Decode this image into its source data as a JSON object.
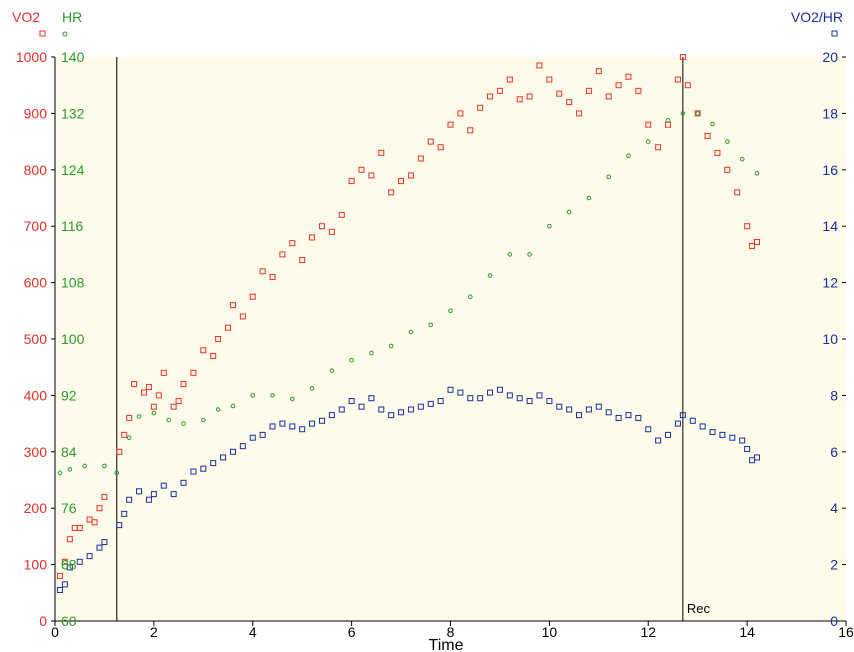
{
  "chart_data": {
    "type": "scatter",
    "xlabel": "Time",
    "xlim": [
      0,
      16
    ],
    "xticks": [
      "0",
      "2",
      "4",
      "6",
      "8",
      "10",
      "12",
      "14",
      "16"
    ],
    "axes": {
      "vo2": {
        "label": "VO2",
        "color": "#e8312a",
        "ylim": [
          0,
          1000
        ],
        "ticks": [
          "0",
          "100",
          "200",
          "300",
          "400",
          "500",
          "600",
          "700",
          "800",
          "900",
          "1000"
        ]
      },
      "hr": {
        "label": "HR",
        "color": "#2e9a2e",
        "ylim": [
          60,
          140
        ],
        "ticks": [
          "60",
          "68",
          "76",
          "84",
          "92",
          "100",
          "108",
          "116",
          "124",
          "132",
          "140"
        ]
      },
      "vo2hr": {
        "label": "VO2/HR",
        "color": "#1a2f9c",
        "ylim": [
          0,
          20
        ],
        "ticks": [
          "0",
          "2",
          "4",
          "6",
          "8",
          "10",
          "12",
          "14",
          "16",
          "18",
          "20"
        ]
      }
    },
    "markers": [
      {
        "x": 1.25,
        "label": ""
      },
      {
        "x": 12.7,
        "label": "Rec"
      }
    ],
    "grid": false,
    "series": [
      {
        "name": "VO2",
        "axis": "vo2",
        "marker": "square",
        "color": "#e8312a",
        "points": [
          [
            0.1,
            80
          ],
          [
            0.2,
            105
          ],
          [
            0.3,
            145
          ],
          [
            0.4,
            165
          ],
          [
            0.5,
            165
          ],
          [
            0.7,
            180
          ],
          [
            0.8,
            175
          ],
          [
            0.9,
            200
          ],
          [
            1.0,
            220
          ],
          [
            1.3,
            300
          ],
          [
            1.4,
            330
          ],
          [
            1.5,
            360
          ],
          [
            1.6,
            420
          ],
          [
            1.8,
            405
          ],
          [
            1.9,
            415
          ],
          [
            2.0,
            380
          ],
          [
            2.1,
            400
          ],
          [
            2.2,
            440
          ],
          [
            2.4,
            380
          ],
          [
            2.5,
            390
          ],
          [
            2.6,
            420
          ],
          [
            2.8,
            440
          ],
          [
            3.0,
            480
          ],
          [
            3.2,
            470
          ],
          [
            3.3,
            500
          ],
          [
            3.5,
            520
          ],
          [
            3.6,
            560
          ],
          [
            3.8,
            540
          ],
          [
            4.0,
            575
          ],
          [
            4.2,
            620
          ],
          [
            4.4,
            610
          ],
          [
            4.6,
            650
          ],
          [
            4.8,
            670
          ],
          [
            5.0,
            640
          ],
          [
            5.2,
            680
          ],
          [
            5.4,
            700
          ],
          [
            5.6,
            690
          ],
          [
            5.8,
            720
          ],
          [
            6.0,
            780
          ],
          [
            6.2,
            800
          ],
          [
            6.4,
            790
          ],
          [
            6.6,
            830
          ],
          [
            6.8,
            760
          ],
          [
            7.0,
            780
          ],
          [
            7.2,
            790
          ],
          [
            7.4,
            820
          ],
          [
            7.6,
            850
          ],
          [
            7.8,
            840
          ],
          [
            8.0,
            880
          ],
          [
            8.2,
            900
          ],
          [
            8.4,
            870
          ],
          [
            8.6,
            910
          ],
          [
            8.8,
            930
          ],
          [
            9.0,
            940
          ],
          [
            9.2,
            960
          ],
          [
            9.4,
            925
          ],
          [
            9.6,
            930
          ],
          [
            9.8,
            985
          ],
          [
            10.0,
            960
          ],
          [
            10.2,
            935
          ],
          [
            10.4,
            920
          ],
          [
            10.6,
            900
          ],
          [
            10.8,
            940
          ],
          [
            11.0,
            975
          ],
          [
            11.2,
            930
          ],
          [
            11.4,
            950
          ],
          [
            11.6,
            965
          ],
          [
            11.8,
            940
          ],
          [
            12.0,
            880
          ],
          [
            12.2,
            840
          ],
          [
            12.4,
            880
          ],
          [
            12.6,
            960
          ],
          [
            12.7,
            1000
          ],
          [
            12.8,
            950
          ],
          [
            13.0,
            900
          ],
          [
            13.2,
            860
          ],
          [
            13.4,
            830
          ],
          [
            13.6,
            800
          ],
          [
            13.8,
            760
          ],
          [
            14.0,
            700
          ],
          [
            14.1,
            665
          ],
          [
            14.2,
            672
          ]
        ]
      },
      {
        "name": "HR",
        "axis": "hr",
        "marker": "circle",
        "color": "#2e9a2e",
        "points": [
          [
            0.1,
            81
          ],
          [
            0.3,
            81.5
          ],
          [
            0.6,
            82
          ],
          [
            1.0,
            82
          ],
          [
            1.25,
            81
          ],
          [
            1.5,
            86
          ],
          [
            1.7,
            89
          ],
          [
            2.0,
            89.5
          ],
          [
            2.3,
            88.5
          ],
          [
            2.6,
            88
          ],
          [
            3.0,
            88.5
          ],
          [
            3.3,
            90
          ],
          [
            3.6,
            90.5
          ],
          [
            4.0,
            92
          ],
          [
            4.4,
            92
          ],
          [
            4.8,
            91.5
          ],
          [
            5.2,
            93
          ],
          [
            5.6,
            95.5
          ],
          [
            6.0,
            97
          ],
          [
            6.4,
            98
          ],
          [
            6.8,
            99
          ],
          [
            7.2,
            101
          ],
          [
            7.6,
            102
          ],
          [
            8.0,
            104
          ],
          [
            8.4,
            106
          ],
          [
            8.8,
            109
          ],
          [
            9.2,
            112
          ],
          [
            9.6,
            112
          ],
          [
            10.0,
            116
          ],
          [
            10.4,
            118
          ],
          [
            10.8,
            120
          ],
          [
            11.2,
            123
          ],
          [
            11.6,
            126
          ],
          [
            12.0,
            128
          ],
          [
            12.4,
            131
          ],
          [
            12.7,
            132
          ],
          [
            13.0,
            132
          ],
          [
            13.3,
            130.5
          ],
          [
            13.6,
            128
          ],
          [
            13.9,
            125.5
          ],
          [
            14.2,
            123.5
          ]
        ]
      },
      {
        "name": "VO2/HR",
        "axis": "vo2hr",
        "marker": "square",
        "color": "#1a2f9c",
        "points": [
          [
            0.1,
            1.1
          ],
          [
            0.2,
            1.3
          ],
          [
            0.3,
            1.9
          ],
          [
            0.5,
            2.1
          ],
          [
            0.7,
            2.3
          ],
          [
            0.9,
            2.6
          ],
          [
            1.0,
            2.8
          ],
          [
            1.3,
            3.4
          ],
          [
            1.4,
            3.8
          ],
          [
            1.5,
            4.3
          ],
          [
            1.7,
            4.6
          ],
          [
            1.9,
            4.3
          ],
          [
            2.0,
            4.5
          ],
          [
            2.2,
            4.8
          ],
          [
            2.4,
            4.5
          ],
          [
            2.6,
            4.9
          ],
          [
            2.8,
            5.3
          ],
          [
            3.0,
            5.4
          ],
          [
            3.2,
            5.6
          ],
          [
            3.4,
            5.8
          ],
          [
            3.6,
            6.0
          ],
          [
            3.8,
            6.2
          ],
          [
            4.0,
            6.5
          ],
          [
            4.2,
            6.6
          ],
          [
            4.4,
            6.9
          ],
          [
            4.6,
            7.0
          ],
          [
            4.8,
            6.9
          ],
          [
            5.0,
            6.8
          ],
          [
            5.2,
            7.0
          ],
          [
            5.4,
            7.1
          ],
          [
            5.6,
            7.3
          ],
          [
            5.8,
            7.5
          ],
          [
            6.0,
            7.8
          ],
          [
            6.2,
            7.6
          ],
          [
            6.4,
            7.9
          ],
          [
            6.6,
            7.5
          ],
          [
            6.8,
            7.3
          ],
          [
            7.0,
            7.4
          ],
          [
            7.2,
            7.5
          ],
          [
            7.4,
            7.6
          ],
          [
            7.6,
            7.7
          ],
          [
            7.8,
            7.8
          ],
          [
            8.0,
            8.2
          ],
          [
            8.2,
            8.1
          ],
          [
            8.4,
            7.9
          ],
          [
            8.6,
            7.9
          ],
          [
            8.8,
            8.1
          ],
          [
            9.0,
            8.2
          ],
          [
            9.2,
            8.0
          ],
          [
            9.4,
            7.9
          ],
          [
            9.6,
            7.8
          ],
          [
            9.8,
            8.0
          ],
          [
            10.0,
            7.8
          ],
          [
            10.2,
            7.6
          ],
          [
            10.4,
            7.5
          ],
          [
            10.6,
            7.3
          ],
          [
            10.8,
            7.5
          ],
          [
            11.0,
            7.6
          ],
          [
            11.2,
            7.4
          ],
          [
            11.4,
            7.2
          ],
          [
            11.6,
            7.3
          ],
          [
            11.8,
            7.2
          ],
          [
            12.0,
            6.8
          ],
          [
            12.2,
            6.4
          ],
          [
            12.4,
            6.6
          ],
          [
            12.6,
            7.0
          ],
          [
            12.7,
            7.3
          ],
          [
            12.9,
            7.1
          ],
          [
            13.1,
            6.9
          ],
          [
            13.3,
            6.7
          ],
          [
            13.5,
            6.6
          ],
          [
            13.7,
            6.5
          ],
          [
            13.9,
            6.4
          ],
          [
            14.0,
            6.1
          ],
          [
            14.1,
            5.7
          ],
          [
            14.2,
            5.8
          ]
        ]
      }
    ]
  }
}
